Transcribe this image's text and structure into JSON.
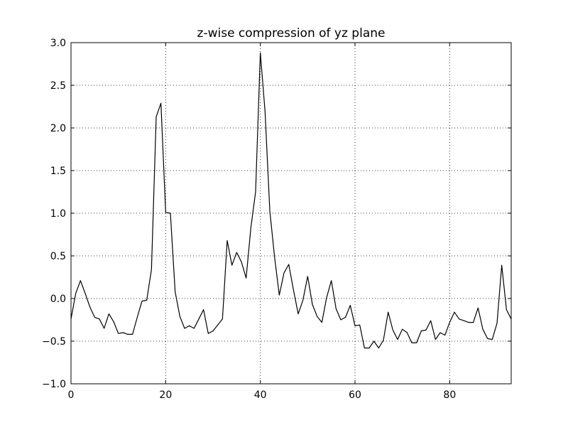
{
  "chart_data": {
    "type": "line",
    "title": "z-wise compression of yz plane",
    "xlabel": "",
    "ylabel": "",
    "xlim": [
      0,
      93
    ],
    "ylim": [
      -1.0,
      3.0
    ],
    "grid": true,
    "x_ticks": [
      0,
      20,
      40,
      60,
      80
    ],
    "x_tick_labels": [
      "0",
      "20",
      "40",
      "60",
      "80"
    ],
    "y_ticks": [
      -1.0,
      -0.5,
      0.0,
      0.5,
      1.0,
      1.5,
      2.0,
      2.5,
      3.0
    ],
    "y_tick_labels": [
      "−1.0",
      "−0.5",
      "0.0",
      "0.5",
      "1.0",
      "1.5",
      "2.0",
      "2.5",
      "3.0"
    ],
    "line_color": "#000000",
    "series": [
      {
        "x": [
          0,
          1,
          2,
          3,
          4,
          5,
          6,
          7,
          8,
          9,
          10,
          11,
          12,
          13,
          14,
          15,
          16,
          17,
          18,
          19,
          20,
          21,
          22,
          23,
          24,
          25,
          26,
          27,
          28,
          29,
          30,
          31,
          32,
          33,
          34,
          35,
          36,
          37,
          38,
          39,
          40,
          41,
          42,
          43,
          44,
          45,
          46,
          47,
          48,
          49,
          50,
          51,
          52,
          53,
          54,
          55,
          56,
          57,
          58,
          59,
          60,
          61,
          62,
          63,
          64,
          65,
          66,
          67,
          68,
          69,
          70,
          71,
          72,
          73,
          74,
          75,
          76,
          77,
          78,
          79,
          80,
          81,
          82,
          83,
          84,
          85,
          86,
          87,
          88,
          89,
          90,
          91,
          92,
          93
        ],
        "values": [
          -0.24,
          0.06,
          0.21,
          0.06,
          -0.1,
          -0.22,
          -0.24,
          -0.35,
          -0.18,
          -0.27,
          -0.41,
          -0.4,
          -0.42,
          -0.42,
          -0.22,
          -0.03,
          -0.02,
          0.34,
          2.13,
          2.29,
          1.01,
          1.0,
          0.08,
          -0.21,
          -0.35,
          -0.32,
          -0.35,
          -0.24,
          -0.13,
          -0.41,
          -0.38,
          -0.31,
          -0.24,
          0.68,
          0.39,
          0.54,
          0.43,
          0.24,
          0.83,
          1.25,
          2.88,
          2.19,
          1.03,
          0.49,
          0.04,
          0.3,
          0.4,
          0.1,
          -0.18,
          -0.02,
          0.26,
          -0.07,
          -0.21,
          -0.28,
          0.01,
          0.21,
          -0.12,
          -0.25,
          -0.22,
          -0.08,
          -0.32,
          -0.31,
          -0.58,
          -0.58,
          -0.5,
          -0.58,
          -0.49,
          -0.16,
          -0.37,
          -0.48,
          -0.36,
          -0.4,
          -0.52,
          -0.52,
          -0.38,
          -0.37,
          -0.26,
          -0.48,
          -0.4,
          -0.43,
          -0.28,
          -0.16,
          -0.24,
          -0.26,
          -0.28,
          -0.28,
          -0.11,
          -0.36,
          -0.47,
          -0.48,
          -0.29,
          0.39,
          -0.13,
          -0.24
        ]
      }
    ]
  }
}
